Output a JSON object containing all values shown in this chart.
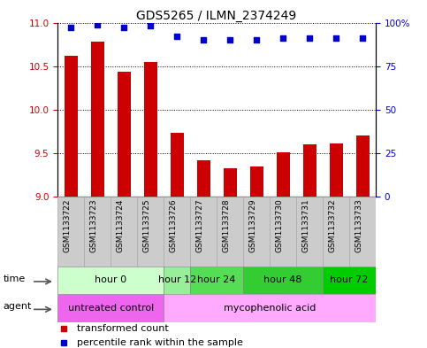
{
  "title": "GDS5265 / ILMN_2374249",
  "samples": [
    "GSM1133722",
    "GSM1133723",
    "GSM1133724",
    "GSM1133725",
    "GSM1133726",
    "GSM1133727",
    "GSM1133728",
    "GSM1133729",
    "GSM1133730",
    "GSM1133731",
    "GSM1133732",
    "GSM1133733"
  ],
  "bar_values": [
    10.62,
    10.78,
    10.44,
    10.55,
    9.73,
    9.42,
    9.33,
    9.35,
    9.51,
    9.6,
    9.61,
    9.7
  ],
  "percentile_values": [
    97,
    99,
    97,
    98,
    92,
    90,
    90,
    90,
    91,
    91,
    91,
    91
  ],
  "bar_color": "#cc0000",
  "dot_color": "#0000cc",
  "ylim_left": [
    9,
    11
  ],
  "ylim_right": [
    0,
    100
  ],
  "yticks_left": [
    9,
    9.5,
    10,
    10.5,
    11
  ],
  "yticks_right": [
    0,
    25,
    50,
    75,
    100
  ],
  "ytick_labels_right": [
    "0",
    "25",
    "50",
    "75",
    "100%"
  ],
  "time_groups": [
    {
      "label": "hour 0",
      "indices": [
        0,
        1,
        2,
        3
      ],
      "color": "#ccffcc"
    },
    {
      "label": "hour 12",
      "indices": [
        4
      ],
      "color": "#99ee99"
    },
    {
      "label": "hour 24",
      "indices": [
        5,
        6
      ],
      "color": "#55dd55"
    },
    {
      "label": "hour 48",
      "indices": [
        7,
        8,
        9
      ],
      "color": "#33cc33"
    },
    {
      "label": "hour 72",
      "indices": [
        10,
        11
      ],
      "color": "#00cc00"
    }
  ],
  "agent_groups": [
    {
      "label": "untreated control",
      "indices": [
        0,
        1,
        2,
        3
      ],
      "color": "#ee66ee"
    },
    {
      "label": "mycophenolic acid",
      "indices": [
        4,
        5,
        6,
        7,
        8,
        9,
        10,
        11
      ],
      "color": "#ffaaff"
    }
  ],
  "legend_items": [
    {
      "label": "transformed count",
      "color": "#cc0000"
    },
    {
      "label": "percentile rank within the sample",
      "color": "#0000cc"
    }
  ],
  "left_axis_color": "#cc0000",
  "right_axis_color": "#0000cc",
  "sample_bg_color": "#cccccc",
  "sample_border_color": "#aaaaaa",
  "title_fontsize": 10,
  "tick_fontsize": 7.5,
  "sample_fontsize": 6.5,
  "row_fontsize": 8,
  "legend_fontsize": 8
}
